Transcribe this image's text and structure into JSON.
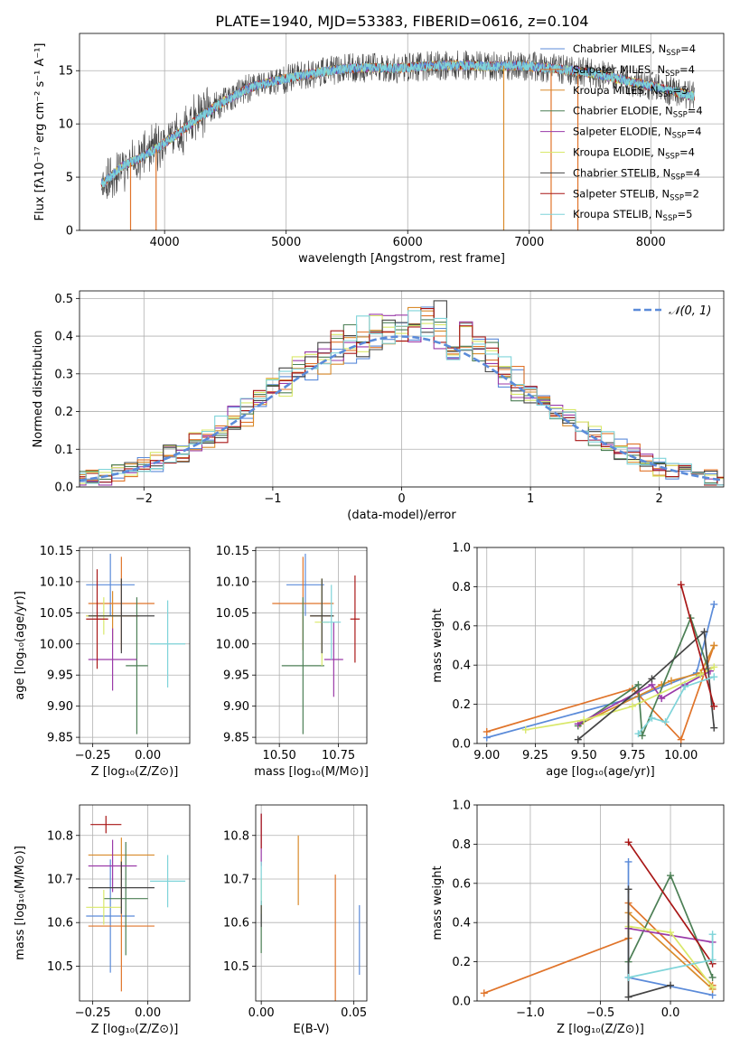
{
  "title": "PLATE=1940, MJD=53383, FIBERID=0616, z=0.104",
  "colors": {
    "chabrier_miles": "#5b8bd9",
    "salpeter_miles": "#e0742a",
    "kroupa_miles": "#d98b2b",
    "chabrier_elodie": "#4c7f55",
    "salpeter_elodie": "#9a3aa8",
    "kroupa_elodie": "#d9e86a",
    "chabrier_stelib": "#444444",
    "salpeter_stelib": "#a81616",
    "kroupa_stelib": "#7fd4d9",
    "normal": "#5b8bd9",
    "grid": "#b0b0b0"
  },
  "legend1": [
    {
      "key": "chabrier_miles",
      "text": "Chabrier MILES, N",
      "sub": "SSP",
      "tail": "=4"
    },
    {
      "key": "salpeter_miles",
      "text": "Salpeter MILES, N",
      "sub": "SSP",
      "tail": "=4"
    },
    {
      "key": "kroupa_miles",
      "text": "Kroupa MILES, N",
      "sub": "SSP",
      "tail": "=5"
    },
    {
      "key": "chabrier_elodie",
      "text": "Chabrier ELODIE, N",
      "sub": "SSP",
      "tail": "=4"
    },
    {
      "key": "salpeter_elodie",
      "text": "Salpeter ELODIE, N",
      "sub": "SSP",
      "tail": "=4"
    },
    {
      "key": "kroupa_elodie",
      "text": "Kroupa ELODIE, N",
      "sub": "SSP",
      "tail": "=4"
    },
    {
      "key": "chabrier_stelib",
      "text": "Chabrier STELIB, N",
      "sub": "SSP",
      "tail": "=4"
    },
    {
      "key": "salpeter_stelib",
      "text": "Salpeter STELIB, N",
      "sub": "SSP",
      "tail": "=2"
    },
    {
      "key": "kroupa_stelib",
      "text": "Kroupa STELIB, N",
      "sub": "SSP",
      "tail": "=5"
    }
  ],
  "legend2": {
    "text": "𝒩(0, 1)"
  },
  "chart_data": [
    {
      "id": "spectrum",
      "type": "line",
      "xlabel": "wavelength [Angstrom, rest frame]",
      "ylabel": "Flux [fλ10⁻¹⁷ erg cm⁻² s⁻¹ A⁻¹]",
      "xlim": [
        3300,
        8600
      ],
      "ylim": [
        0,
        18.5
      ],
      "xticks": [
        4000,
        5000,
        6000,
        7000,
        8000
      ],
      "yticks": [
        0,
        5,
        10,
        15
      ],
      "continuum": {
        "x": [
          3500,
          3650,
          3800,
          3950,
          4100,
          4300,
          4500,
          4700,
          4900,
          5100,
          5300,
          5500,
          5700,
          5900,
          6100,
          6300,
          6500,
          6700,
          6900,
          7100,
          7300,
          7500,
          7700,
          7900,
          8100,
          8350
        ],
        "y": [
          4.5,
          6.0,
          6.8,
          7.8,
          9.0,
          10.7,
          12.2,
          13.4,
          14.0,
          14.5,
          14.9,
          15.2,
          15.3,
          15.2,
          15.4,
          15.5,
          15.5,
          15.4,
          15.5,
          15.3,
          15.1,
          14.8,
          14.3,
          13.8,
          13.3,
          12.6
        ]
      },
      "spikes": [
        {
          "x": 3720,
          "y": 0
        },
        {
          "x": 3930,
          "y": 0
        },
        {
          "x": 6790,
          "y": 0
        },
        {
          "x": 7180,
          "y": 0
        },
        {
          "x": 7400,
          "y": 0
        }
      ]
    },
    {
      "id": "residuals",
      "type": "step-histogram",
      "xlabel": "(data-model)/error",
      "ylabel": "Normed distribution",
      "xlim": [
        -2.5,
        2.5
      ],
      "ylim": [
        0,
        0.52
      ],
      "xticks": [
        -2,
        -1,
        0,
        1,
        2
      ],
      "yticks": [
        0.0,
        0.1,
        0.2,
        0.3,
        0.4,
        0.5
      ],
      "bin_width": 0.1,
      "reference_curve": "standard normal density",
      "series_keys": [
        "chabrier_miles",
        "salpeter_miles",
        "kroupa_miles",
        "chabrier_elodie",
        "salpeter_elodie",
        "kroupa_elodie",
        "chabrier_stelib",
        "salpeter_stelib",
        "kroupa_stelib"
      ]
    },
    {
      "id": "age_vs_Z",
      "type": "errorbar",
      "xlabel": "Z [log₁₀(Z/Z⊙)]",
      "ylabel": "age  [log₁₀(age/yr)]",
      "xlim": [
        -0.31,
        0.19
      ],
      "ylim": [
        9.84,
        10.155
      ],
      "xticks": [
        -0.25,
        0.0
      ],
      "yticks": [
        9.85,
        9.9,
        9.95,
        10.0,
        10.05,
        10.1,
        10.15
      ],
      "points": [
        {
          "key": "chabrier_miles",
          "x": -0.17,
          "y": 10.095,
          "xerr": 0.11,
          "yerr": 0.05
        },
        {
          "key": "salpeter_miles",
          "x": -0.12,
          "y": 10.065,
          "xerr": 0.15,
          "yerr": 0.075
        },
        {
          "key": "kroupa_miles",
          "x": -0.16,
          "y": 10.045,
          "xerr": 0.12,
          "yerr": 0.04
        },
        {
          "key": "chabrier_elodie",
          "x": -0.05,
          "y": 9.965,
          "xerr": 0.05,
          "yerr": 0.11
        },
        {
          "key": "salpeter_elodie",
          "x": -0.16,
          "y": 9.975,
          "xerr": 0.11,
          "yerr": 0.05
        },
        {
          "key": "kroupa_elodie",
          "x": -0.2,
          "y": 10.045,
          "xerr": 0.08,
          "yerr": 0.03
        },
        {
          "key": "chabrier_stelib",
          "x": -0.12,
          "y": 10.045,
          "xerr": 0.15,
          "yerr": 0.06
        },
        {
          "key": "salpeter_stelib",
          "x": -0.23,
          "y": 10.04,
          "xerr": 0.05,
          "yerr": 0.08
        },
        {
          "key": "kroupa_stelib",
          "x": 0.09,
          "y": 10.0,
          "xerr": 0.08,
          "yerr": 0.07
        }
      ]
    },
    {
      "id": "age_vs_mass",
      "type": "errorbar",
      "xlabel": "mass [log₁₀(M/M⊙)]",
      "ylabel": "",
      "xlim": [
        10.4,
        10.87
      ],
      "ylim": [
        9.84,
        10.155
      ],
      "xticks": [
        10.5,
        10.75
      ],
      "yticks": [
        9.85,
        9.9,
        9.95,
        10.0,
        10.05,
        10.1,
        10.15
      ],
      "points": [
        {
          "key": "chabrier_miles",
          "x": 10.61,
          "y": 10.095,
          "xerr": 0.08,
          "yerr": 0.05
        },
        {
          "key": "salpeter_miles",
          "x": 10.6,
          "y": 10.065,
          "xerr": 0.13,
          "yerr": 0.075
        },
        {
          "key": "kroupa_miles",
          "x": 10.68,
          "y": 10.045,
          "xerr": 0.05,
          "yerr": 0.06
        },
        {
          "key": "chabrier_elodie",
          "x": 10.6,
          "y": 9.965,
          "xerr": 0.09,
          "yerr": 0.11
        },
        {
          "key": "salpeter_elodie",
          "x": 10.73,
          "y": 9.975,
          "xerr": 0.04,
          "yerr": 0.06
        },
        {
          "key": "kroupa_elodie",
          "x": 10.68,
          "y": 10.035,
          "xerr": 0.03,
          "yerr": 0.07
        },
        {
          "key": "chabrier_stelib",
          "x": 10.68,
          "y": 10.045,
          "xerr": 0.05,
          "yerr": 0.06
        },
        {
          "key": "salpeter_stelib",
          "x": 10.82,
          "y": 10.04,
          "xerr": 0.02,
          "yerr": 0.07
        },
        {
          "key": "kroupa_stelib",
          "x": 10.72,
          "y": 10.035,
          "xerr": 0.04,
          "yerr": 0.06
        }
      ]
    },
    {
      "id": "weight_vs_age",
      "type": "line-markers",
      "xlabel": "age  [log₁₀(age/yr)]",
      "ylabel": "mass weight",
      "xlim": [
        8.95,
        10.22
      ],
      "ylim": [
        0,
        1
      ],
      "xticks": [
        9.0,
        9.25,
        9.5,
        9.75,
        10.0
      ],
      "yticks": [
        0.0,
        0.2,
        0.4,
        0.6,
        0.8,
        1.0
      ],
      "series": [
        {
          "key": "chabrier_miles",
          "x": [
            9.0,
            9.78,
            10.08,
            10.17
          ],
          "y": [
            0.03,
            0.24,
            0.36,
            0.71
          ]
        },
        {
          "key": "salpeter_miles",
          "x": [
            9.0,
            9.75,
            10.0,
            10.17
          ],
          "y": [
            0.06,
            0.28,
            0.02,
            0.5
          ]
        },
        {
          "key": "kroupa_miles",
          "x": [
            9.48,
            9.9,
            9.95,
            10.1,
            10.17
          ],
          "y": [
            0.1,
            0.3,
            0.32,
            0.36,
            0.5
          ]
        },
        {
          "key": "chabrier_elodie",
          "x": [
            9.47,
            9.78,
            9.8,
            10.05,
            10.14
          ],
          "y": [
            0.09,
            0.3,
            0.04,
            0.64,
            0.38
          ]
        },
        {
          "key": "salpeter_elodie",
          "x": [
            9.47,
            9.85,
            9.9,
            10.02,
            10.15
          ],
          "y": [
            0.1,
            0.3,
            0.23,
            0.3,
            0.37
          ]
        },
        {
          "key": "kroupa_elodie",
          "x": [
            9.2,
            9.5,
            9.75,
            10.1,
            10.17
          ],
          "y": [
            0.07,
            0.12,
            0.19,
            0.35,
            0.39
          ]
        },
        {
          "key": "chabrier_stelib",
          "x": [
            9.47,
            9.85,
            10.12,
            10.17
          ],
          "y": [
            0.02,
            0.33,
            0.57,
            0.08
          ]
        },
        {
          "key": "salpeter_stelib",
          "x": [
            10.0,
            10.17
          ],
          "y": [
            0.81,
            0.19
          ]
        },
        {
          "key": "kroupa_stelib",
          "x": [
            9.78,
            9.85,
            9.92,
            10.02,
            10.17
          ],
          "y": [
            0.05,
            0.13,
            0.11,
            0.29,
            0.34
          ]
        }
      ]
    },
    {
      "id": "mass_vs_Z",
      "type": "errorbar",
      "xlabel": "Z [log₁₀(Z/Z⊙)]",
      "ylabel": "mass [log₁₀(M/M⊙)]",
      "xlim": [
        -0.31,
        0.19
      ],
      "ylim": [
        10.42,
        10.87
      ],
      "xticks": [
        -0.25,
        0.0
      ],
      "yticks": [
        10.5,
        10.6,
        10.7,
        10.8
      ],
      "points": [
        {
          "key": "chabrier_miles",
          "x": -0.17,
          "y": 10.615,
          "xerr": 0.11,
          "yerr": 0.13
        },
        {
          "key": "salpeter_miles",
          "x": -0.12,
          "y": 10.592,
          "xerr": 0.15,
          "yerr": 0.15
        },
        {
          "key": "kroupa_miles",
          "x": -0.12,
          "y": 10.755,
          "xerr": 0.15,
          "yerr": 0.04
        },
        {
          "key": "chabrier_elodie",
          "x": -0.1,
          "y": 10.655,
          "xerr": 0.1,
          "yerr": 0.13
        },
        {
          "key": "salpeter_elodie",
          "x": -0.16,
          "y": 10.73,
          "xerr": 0.11,
          "yerr": 0.06
        },
        {
          "key": "kroupa_elodie",
          "x": -0.2,
          "y": 10.635,
          "xerr": 0.08,
          "yerr": 0.04
        },
        {
          "key": "chabrier_stelib",
          "x": -0.12,
          "y": 10.68,
          "xerr": 0.15,
          "yerr": 0.06
        },
        {
          "key": "salpeter_stelib",
          "x": -0.19,
          "y": 10.825,
          "xerr": 0.07,
          "yerr": 0.02
        },
        {
          "key": "kroupa_stelib",
          "x": 0.09,
          "y": 10.695,
          "xerr": 0.08,
          "yerr": 0.06
        }
      ]
    },
    {
      "id": "mass_vs_ebv",
      "type": "errorbar",
      "xlabel": "E(B-V)",
      "ylabel": "",
      "xlim": [
        -0.003,
        0.057
      ],
      "ylim": [
        10.42,
        10.87
      ],
      "xticks": [
        0.0,
        0.05
      ],
      "yticks": [
        10.5,
        10.6,
        10.7,
        10.8
      ],
      "points": [
        {
          "key": "chabrier_miles",
          "x": 0.053,
          "y": 10.56,
          "xerr": 0,
          "yerr": 0.08
        },
        {
          "key": "salpeter_miles",
          "x": 0.04,
          "y": 10.56,
          "xerr": 0,
          "yerr": 0.15
        },
        {
          "key": "kroupa_miles",
          "x": 0.02,
          "y": 10.72,
          "xerr": 0,
          "yerr": 0.08
        },
        {
          "key": "chabrier_elodie",
          "x": 0.0,
          "y": 10.59,
          "xerr": 0,
          "yerr": 0.06
        },
        {
          "key": "salpeter_elodie",
          "x": 0.0,
          "y": 10.79,
          "xerr": 0,
          "yerr": 0.06
        },
        {
          "key": "kroupa_elodie",
          "x": 0.0,
          "y": 10.66,
          "xerr": 0,
          "yerr": 0.04
        },
        {
          "key": "chabrier_stelib",
          "x": 0.0,
          "y": 10.62,
          "xerr": 0,
          "yerr": 0.03
        },
        {
          "key": "salpeter_stelib",
          "x": 0.0,
          "y": 10.81,
          "xerr": 0,
          "yerr": 0.04
        },
        {
          "key": "kroupa_stelib",
          "x": 0.0,
          "y": 10.69,
          "xerr": 0,
          "yerr": 0.05
        }
      ]
    },
    {
      "id": "weight_vs_Z",
      "type": "line-markers",
      "xlabel": "Z [log₁₀(Z/Z⊙)]",
      "ylabel": "mass weight",
      "xlim": [
        -1.38,
        0.38
      ],
      "ylim": [
        0,
        1
      ],
      "xticks": [
        -1.0,
        -0.5,
        0.0
      ],
      "yticks": [
        0.0,
        0.2,
        0.4,
        0.6,
        0.8,
        1.0
      ],
      "series": [
        {
          "key": "chabrier_miles",
          "x": [
            -0.3,
            -0.3,
            0.3
          ],
          "y": [
            0.71,
            0.12,
            0.03
          ]
        },
        {
          "key": "salpeter_miles",
          "x": [
            -1.33,
            -0.3,
            -0.3,
            0.3
          ],
          "y": [
            0.04,
            0.32,
            0.5,
            0.08
          ]
        },
        {
          "key": "kroupa_miles",
          "x": [
            -0.3,
            0.3
          ],
          "y": [
            0.45,
            0.06
          ]
        },
        {
          "key": "chabrier_elodie",
          "x": [
            -0.3,
            0.0,
            0.3
          ],
          "y": [
            0.2,
            0.64,
            0.12
          ]
        },
        {
          "key": "salpeter_elodie",
          "x": [
            -0.3,
            0.3
          ],
          "y": [
            0.37,
            0.3
          ]
        },
        {
          "key": "kroupa_elodie",
          "x": [
            -0.3,
            0.0,
            0.3
          ],
          "y": [
            0.38,
            0.35,
            0.07
          ]
        },
        {
          "key": "chabrier_stelib",
          "x": [
            -0.3,
            -0.3,
            0.0
          ],
          "y": [
            0.57,
            0.02,
            0.08
          ]
        },
        {
          "key": "salpeter_stelib",
          "x": [
            -0.3,
            0.3
          ],
          "y": [
            0.81,
            0.19
          ]
        },
        {
          "key": "kroupa_stelib",
          "x": [
            -0.3,
            0.3,
            0.3
          ],
          "y": [
            0.12,
            0.21,
            0.34
          ]
        }
      ]
    }
  ]
}
